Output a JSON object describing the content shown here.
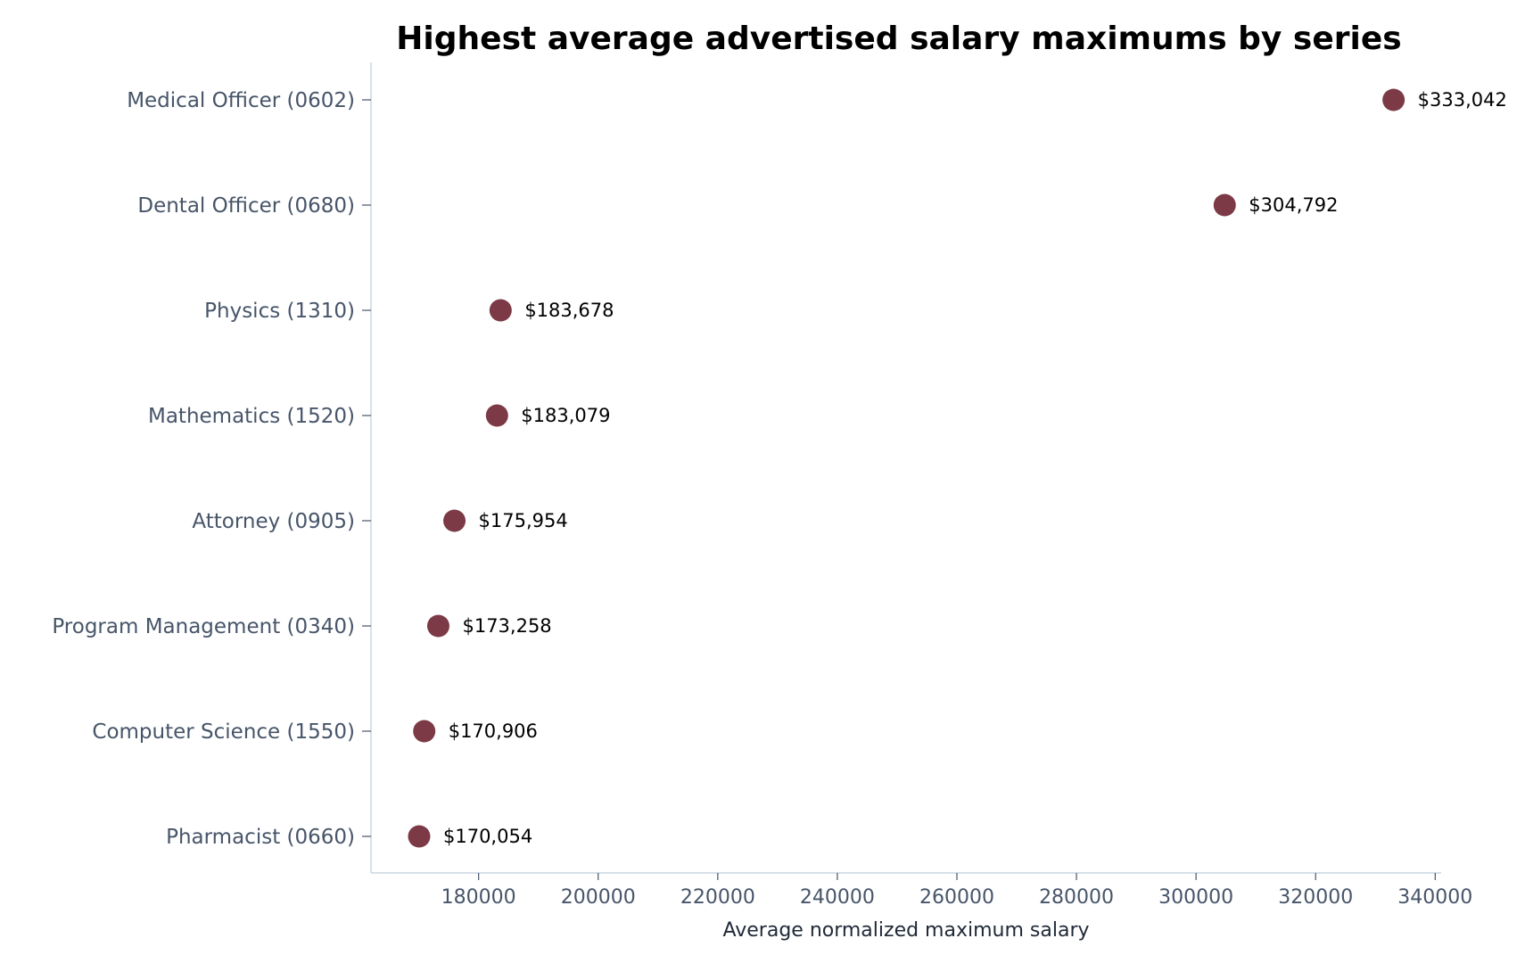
{
  "chart_data": {
    "type": "scatter",
    "title": "Highest average advertised salary maximums by series",
    "xlabel": "Average normalized maximum salary",
    "ylabel": "",
    "xlim": [
      162000,
      341000
    ],
    "xticks": [
      180000,
      200000,
      220000,
      240000,
      260000,
      280000,
      300000,
      320000,
      340000
    ],
    "grid": false,
    "marker_color": "#7b3a45",
    "categories": [
      "Medical Officer (0602)",
      "Dental Officer (0680)",
      "Physics (1310)",
      "Mathematics (1520)",
      "Attorney (0905)",
      "Program Management (0340)",
      "Computer Science (1550)",
      "Pharmacist (0660)"
    ],
    "values": [
      333042,
      304792,
      183678,
      183079,
      175954,
      173258,
      170906,
      170054
    ],
    "value_labels": [
      "$333,042",
      "$304,792",
      "$183,678",
      "$183,079",
      "$175,954",
      "$173,258",
      "$170,906",
      "$170,054"
    ]
  }
}
